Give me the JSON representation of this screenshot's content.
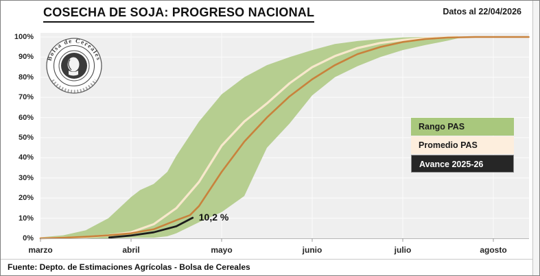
{
  "header": {
    "title": "COSECHA DE SOJA: PROGRESO NACIONAL",
    "date_note": "Datos al 22/04/2026"
  },
  "logo": {
    "text": "Bolsa de Cereales"
  },
  "legend": {
    "position": "middle-right",
    "items": [
      {
        "label": "Rango PAS",
        "swatch": "#a9c87d",
        "text_color": "#1a1a1a",
        "bordered": false
      },
      {
        "label": "Promedio PAS",
        "swatch": "#fdeedd",
        "text_color": "#1a1a1a",
        "bordered": false
      },
      {
        "label": "Avance 2025-26",
        "swatch": "#262626",
        "text_color": "#ffffff",
        "bordered": true
      }
    ]
  },
  "footer": {
    "source": "Fuente: Depto. de Estimaciones Agrícolas - Bolsa de Cereales"
  },
  "colors": {
    "plot_bg": "#efefef",
    "gridline": "#fafafa",
    "axis_line": "#b5b5b5",
    "tick": "#999999",
    "band_fill": "#b6ce90",
    "promedio_line": "#f8e8cc",
    "orange_line": "#c8823c",
    "avance_line": "#1c1c1c"
  },
  "chart_data": {
    "type": "area",
    "title": "COSECHA DE SOJA: PROGRESO NACIONAL",
    "x_encoding": "meses desde el inicio de marzo (marzo=0, abril=1, mayo=2, junio=3, julio=4, agosto=5)",
    "x_axis": {
      "tick_labels": [
        "marzo",
        "abril",
        "mayo",
        "junio",
        "julio",
        "agosto"
      ],
      "range": [
        0,
        5.39
      ]
    },
    "y_axis": {
      "min": 0,
      "max": 100,
      "step": 10,
      "format": "percent",
      "tick_labels": [
        "0%",
        "10%",
        "20%",
        "30%",
        "40%",
        "50%",
        "60%",
        "70%",
        "80%",
        "90%",
        "100%"
      ]
    },
    "grid": true,
    "series": [
      {
        "name": "Rango PAS",
        "type": "band",
        "color": "#b6ce90",
        "x": [
          0,
          0.25,
          0.5,
          0.75,
          1.0,
          1.1,
          1.25,
          1.4,
          1.5,
          1.75,
          2.0,
          2.25,
          2.5,
          2.75,
          3.0,
          3.25,
          3.5,
          3.75,
          4.0,
          4.25,
          4.5,
          4.67
        ],
        "low": [
          0,
          0,
          0,
          0,
          0.3,
          0.3,
          0.3,
          1,
          2.5,
          8,
          13,
          21,
          45,
          57,
          71,
          80,
          85.5,
          90,
          93.5,
          96,
          98.2,
          100
        ],
        "high": [
          0.5,
          1.5,
          4,
          10,
          20.5,
          24,
          27,
          33,
          41,
          58,
          71.5,
          80,
          86,
          90,
          93.5,
          96.5,
          98,
          99,
          99.8,
          100,
          100,
          100
        ]
      },
      {
        "name": "Promedio PAS",
        "type": "line",
        "color": "#f8e8cc",
        "x": [
          0,
          0.25,
          0.5,
          0.75,
          1.0,
          1.25,
          1.5,
          1.75,
          2.0,
          2.25,
          2.5,
          2.75,
          3.0,
          3.25,
          3.5,
          3.75,
          4.0,
          4.25,
          4.6
        ],
        "values": [
          0,
          0.2,
          0.6,
          1.5,
          3,
          7,
          15,
          28,
          46,
          58,
          67,
          77,
          85,
          90.5,
          94.5,
          97,
          98.5,
          99.4,
          100
        ]
      },
      {
        "name": "línea naranja (sin etiqueta en leyenda)",
        "type": "line",
        "color": "#c8823c",
        "x": [
          0,
          0.25,
          0.5,
          0.75,
          1.0,
          1.25,
          1.5,
          1.65,
          1.75,
          2.0,
          2.25,
          2.5,
          2.75,
          3.0,
          3.25,
          3.5,
          3.75,
          4.0,
          4.25,
          4.5,
          4.8,
          5.39
        ],
        "values": [
          0,
          0.3,
          0.8,
          1.5,
          2.5,
          4.5,
          9,
          11.5,
          16,
          33,
          48,
          60,
          70.5,
          79,
          86,
          91.5,
          95,
          97.5,
          99,
          99.7,
          100,
          100
        ]
      },
      {
        "name": "Avance 2025-26",
        "type": "line",
        "color": "#1c1c1c",
        "x": [
          0.76,
          1.0,
          1.25,
          1.5,
          1.68
        ],
        "values": [
          0.4,
          1.4,
          3,
          6,
          10.2
        ]
      }
    ],
    "annotation": {
      "text": "10,2 %",
      "x": 1.68,
      "value": 10.2
    }
  }
}
